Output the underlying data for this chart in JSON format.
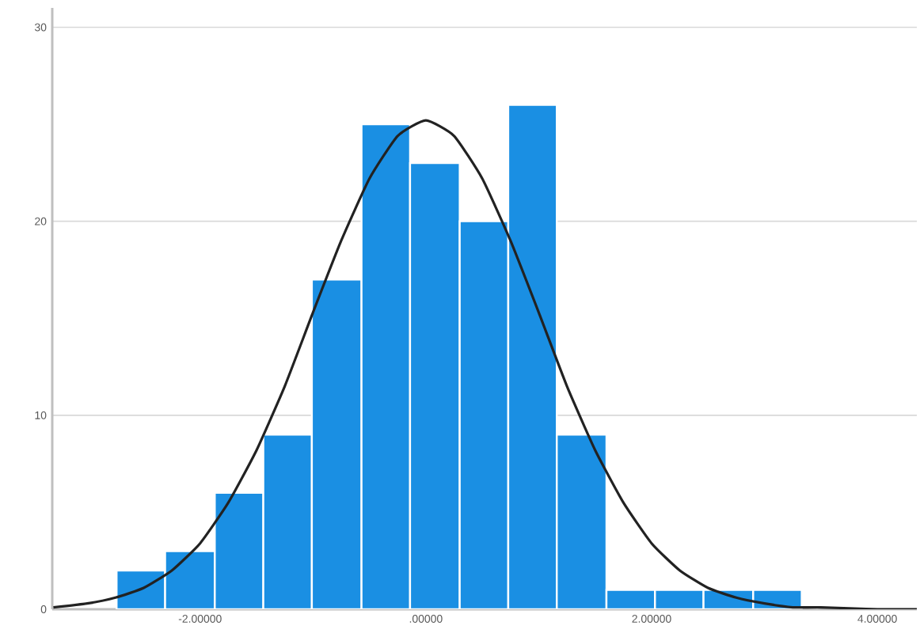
{
  "chart_data": {
    "type": "histogram",
    "series": [
      {
        "color": "#1a8fe3",
        "bins": [
          -2.74,
          -2.31,
          -1.87,
          -1.44,
          -1.01,
          -0.57,
          -0.14,
          0.3,
          0.73,
          1.16,
          1.6,
          2.03,
          2.46,
          2.9,
          3.33
        ],
        "values": [
          2,
          3,
          6,
          9,
          17,
          25,
          23,
          20,
          26,
          9,
          1,
          1,
          1,
          1
        ]
      },
      {
        "type": "line",
        "color": "#222222",
        "x": [
          -3.3,
          -3.0,
          -2.75,
          -2.5,
          -2.25,
          -2.0,
          -1.75,
          -1.5,
          -1.25,
          -1.0,
          -0.75,
          -0.5,
          -0.25,
          0,
          0.25,
          0.5,
          0.75,
          1.0,
          1.25,
          1.5,
          1.75,
          2.0,
          2.25,
          2.5,
          2.75,
          3.0,
          3.25,
          3.5,
          4.0,
          4.35
        ],
        "values": [
          0.1,
          0.3,
          0.6,
          1.1,
          2.0,
          3.4,
          5.5,
          8.2,
          11.5,
          15.3,
          19.0,
          22.2,
          24.4,
          25.2,
          24.4,
          22.2,
          19.0,
          15.3,
          11.5,
          8.2,
          5.5,
          3.4,
          2.0,
          1.1,
          0.6,
          0.3,
          0.1,
          0.1,
          0,
          0
        ]
      }
    ],
    "xlim": [
      -3.31,
      4.35
    ],
    "ylim": [
      0,
      31
    ],
    "xticks": [
      {
        "value": -2,
        "label": "-2.00000"
      },
      {
        "value": 0,
        "label": ".00000"
      },
      {
        "value": 2,
        "label": "2.00000"
      },
      {
        "value": 4,
        "label": "4.00000"
      }
    ],
    "yticks": [
      0,
      10,
      20,
      30
    ],
    "grid": "y"
  }
}
